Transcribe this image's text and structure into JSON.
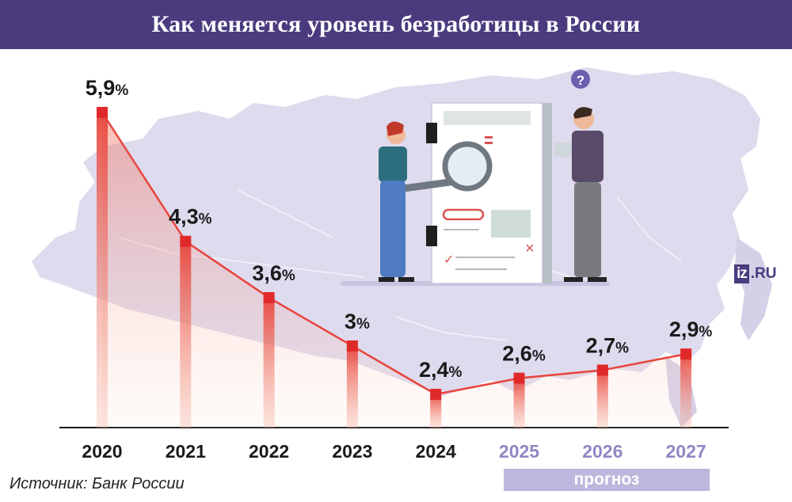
{
  "header": {
    "title": "Как меняется уровень безработицы в России"
  },
  "brand": {
    "box_text": "iz",
    "suffix_text": ".RU"
  },
  "source": {
    "text": "Источник: Банк России"
  },
  "forecast": {
    "label": "прогноз"
  },
  "colors": {
    "header_bg": "#4a3b7e",
    "line": "#e8453c",
    "marker": "#e02a2a",
    "forecast_text": "#8e88c4",
    "forecast_band": "#bcb7dc",
    "map": "#dedbee"
  },
  "chart_data": {
    "type": "line",
    "title": "Как меняется уровень безработицы в России",
    "categories": [
      "2020",
      "2021",
      "2022",
      "2023",
      "2024",
      "2025",
      "2026",
      "2027"
    ],
    "values": [
      5.9,
      4.3,
      3.6,
      3.0,
      2.4,
      2.6,
      2.7,
      2.9
    ],
    "data_labels": [
      "5,9%",
      "4,3%",
      "3,6%",
      "3%",
      "2,4%",
      "2,6%",
      "2,7%",
      "2,9%"
    ],
    "forecast_categories": [
      "2025",
      "2026",
      "2027"
    ],
    "ylim": [
      0,
      6.9
    ],
    "grid": false,
    "style": "line with bars under each point, area filled with gradient"
  }
}
